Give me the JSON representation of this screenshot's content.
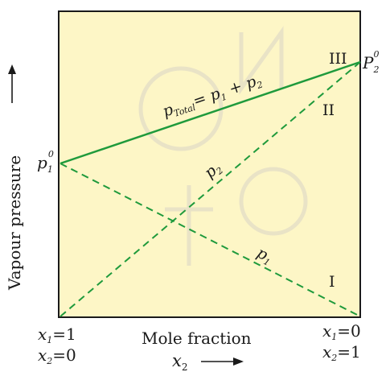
{
  "diagram": {
    "colors": {
      "plot_background": "#fdf6c6",
      "frame": "#1a1a1a",
      "line_green": "#1f9a3c",
      "arrow": "#1a1a1a"
    },
    "y_axis_label": "Vapour pressure",
    "x_axis_label": "Mole fraction",
    "x_axis_symbol": "x",
    "x_axis_symbol_sub": "2",
    "left_pressure": {
      "main": "p",
      "sub": "1",
      "sup": "0"
    },
    "right_pressure": {
      "main": "P",
      "sub": "2",
      "sup": "0"
    },
    "left_composition": [
      {
        "var": "x",
        "sub": "1",
        "eq": "=1"
      },
      {
        "var": "x",
        "sub": "2",
        "eq": "=0"
      }
    ],
    "right_composition": [
      {
        "var": "x",
        "sub": "1",
        "eq": "=0"
      },
      {
        "var": "x",
        "sub": "2",
        "eq": "=1"
      }
    ],
    "lines": [
      {
        "id": "p1",
        "style": "dashed",
        "label_main": "p",
        "label_sub": "1",
        "region": "I"
      },
      {
        "id": "p2",
        "style": "dashed",
        "label_main": "p",
        "label_sub": "2",
        "region": "II"
      },
      {
        "id": "ptotal",
        "style": "solid",
        "label_main": "p",
        "label_sub": "Total",
        "label_rest": "= p",
        "label_sub2": "1",
        "label_plus": " + p",
        "label_sub3": "2",
        "region": "III"
      }
    ],
    "region_labels": [
      "I",
      "II",
      "III"
    ]
  }
}
